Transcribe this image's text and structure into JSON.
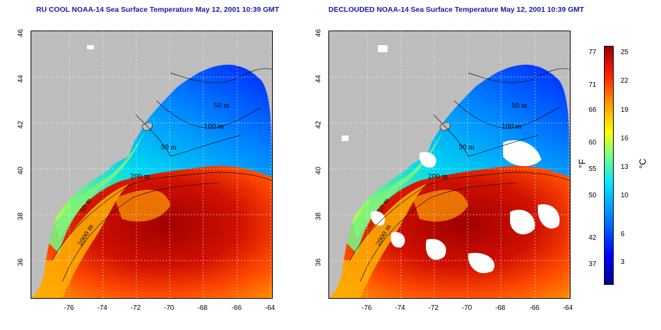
{
  "panels": [
    {
      "title": "RU COOL NOAA-14 Sea Surface Temperature May 12, 2001 10:39 GMT",
      "variant": "cloudy"
    },
    {
      "title": "DECLOUDED NOAA-14 Sea Surface Temperature May 12, 2001 10:39 GMT",
      "variant": "declouded"
    }
  ],
  "lat_ticks": [
    "46",
    "44",
    "42",
    "40",
    "38",
    "36"
  ],
  "lon_ticks": [
    "-76",
    "-74",
    "-72",
    "-70",
    "-68",
    "-66",
    "-64"
  ],
  "contour_labels": [
    "50 m",
    "100 m",
    "50 m",
    "200 m",
    "50 m",
    "2000 m"
  ],
  "colorbar": {
    "fahrenheit": [
      "77",
      "71",
      "66",
      "60",
      "55",
      "50",
      "42",
      "37"
    ],
    "celsius": [
      "25",
      "22",
      "19",
      "16",
      "13",
      "10",
      "6",
      "3"
    ],
    "unit_f": "°F",
    "unit_c": "°C"
  },
  "colors": {
    "land": "#bdbdbd",
    "title": "#1a1aa8",
    "warm": "#c80000",
    "cold": "#0040ff"
  }
}
